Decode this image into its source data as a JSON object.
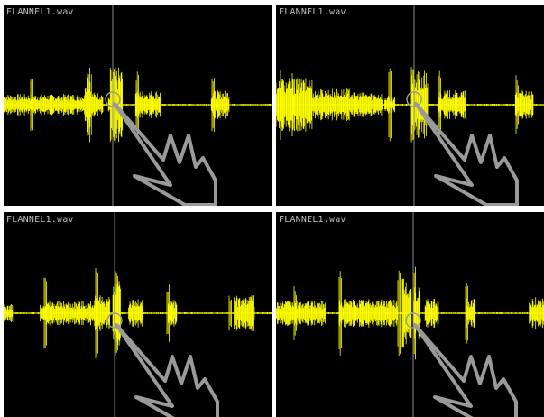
{
  "colors": {
    "background": "#000000",
    "waveform": "#ffff00",
    "cursor_line": "#8a8a8a",
    "hand_cursor": "#9a9a9a",
    "label": "#bdbdbd",
    "separator": "#ffffff"
  },
  "panes": [
    {
      "id": "top-left",
      "file_label": "FLANNEL1.wav",
      "cursor_icon": "hand-pointer-icon"
    },
    {
      "id": "top-right",
      "file_label": "FLANNEL1.wav",
      "cursor_icon": "hand-pointer-icon"
    },
    {
      "id": "bottom-left",
      "file_label": "FLANNEL1.wav",
      "cursor_icon": "hand-pointer-icon"
    },
    {
      "id": "bottom-right",
      "file_label": "FLANNEL1.wav",
      "cursor_icon": "hand-pointer-icon"
    }
  ]
}
